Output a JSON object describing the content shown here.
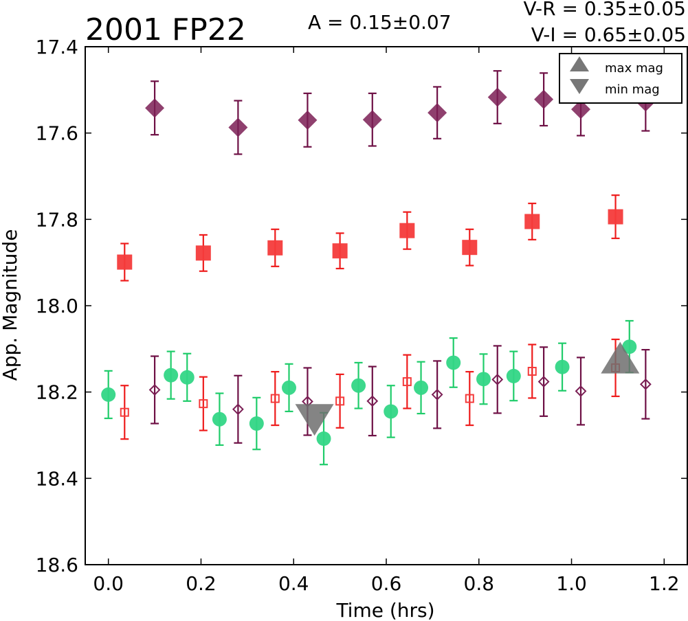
{
  "chart_data": {
    "type": "scatter",
    "title": "2001 FP22",
    "annotations": {
      "amplitude": "A  = 0.15±0.07",
      "v_r": "V-R = 0.35±0.05",
      "v_i": "V-I  = 0.65±0.05"
    },
    "xlabel": "Time (hrs)",
    "ylabel": "App. Magnitude",
    "xlim": [
      -0.05,
      1.25
    ],
    "ylim": [
      18.6,
      17.4
    ],
    "y_inverted": true,
    "grid": false,
    "x_ticks": [
      "0.0",
      "0.2",
      "0.4",
      "0.6",
      "0.8",
      "1.0",
      "1.2"
    ],
    "y_ticks": [
      "17.4",
      "17.6",
      "17.8",
      "18.0",
      "18.2",
      "18.4",
      "18.6"
    ],
    "legend": {
      "placement": "top-right",
      "entries": [
        {
          "label": "max mag",
          "marker": "triangle-up",
          "color": "#777777"
        },
        {
          "label": "min mag",
          "marker": "triangle-down",
          "color": "#777777"
        }
      ]
    },
    "series": [
      {
        "marker": "diamond-filled",
        "color": "#7b1f55",
        "err_color": "#6e1045",
        "x": [
          0.1,
          0.28,
          0.43,
          0.57,
          0.71,
          0.84,
          0.94,
          1.02,
          1.16
        ],
        "y": [
          17.542,
          17.587,
          17.57,
          17.569,
          17.553,
          17.517,
          17.522,
          17.545,
          17.528
        ],
        "err": [
          0.062,
          0.062,
          0.062,
          0.061,
          0.06,
          0.061,
          0.061,
          0.061,
          0.067
        ]
      },
      {
        "marker": "square-filled",
        "color": "#f43b3b",
        "err_color": "#ee1c1c",
        "x": [
          0.035,
          0.205,
          0.36,
          0.5,
          0.645,
          0.78,
          0.915,
          1.095
        ],
        "y": [
          17.899,
          17.878,
          17.866,
          17.873,
          17.826,
          17.865,
          17.805,
          17.794
        ],
        "err": [
          0.043,
          0.042,
          0.043,
          0.041,
          0.043,
          0.042,
          0.042,
          0.05
        ]
      },
      {
        "marker": "circle-filled",
        "color": "#33d686",
        "err_color": "#1fcc6a",
        "x": [
          0.0,
          0.135,
          0.17,
          0.24,
          0.32,
          0.39,
          0.465,
          0.54,
          0.61,
          0.675,
          0.745,
          0.81,
          0.875,
          0.98,
          1.125
        ],
        "y": [
          18.206,
          18.161,
          18.166,
          18.263,
          18.273,
          18.19,
          18.308,
          18.185,
          18.245,
          18.19,
          18.132,
          18.17,
          18.163,
          18.142,
          18.095
        ],
        "err": [
          0.055,
          0.055,
          0.055,
          0.06,
          0.06,
          0.055,
          0.06,
          0.053,
          0.06,
          0.06,
          0.057,
          0.058,
          0.057,
          0.055,
          0.06
        ]
      },
      {
        "marker": "square-open",
        "color": "#f43b3b",
        "err_color": "#ee1c1c",
        "x": [
          0.035,
          0.205,
          0.36,
          0.5,
          0.645,
          0.78,
          0.915,
          1.095
        ],
        "y": [
          18.247,
          18.227,
          18.215,
          18.221,
          18.176,
          18.215,
          18.152,
          18.144
        ],
        "err": [
          0.062,
          0.062,
          0.062,
          0.062,
          0.062,
          0.062,
          0.062,
          0.066
        ]
      },
      {
        "marker": "diamond-open",
        "color": "#7b1f55",
        "err_color": "#6e1045",
        "x": [
          0.1,
          0.28,
          0.43,
          0.57,
          0.71,
          0.84,
          0.94,
          1.02,
          1.16
        ],
        "y": [
          18.195,
          18.24,
          18.222,
          18.221,
          18.206,
          18.171,
          18.176,
          18.198,
          18.182
        ],
        "err": [
          0.078,
          0.078,
          0.078,
          0.08,
          0.078,
          0.078,
          0.08,
          0.078,
          0.08
        ]
      }
    ],
    "extremes": [
      {
        "kind": "min",
        "x": 0.445,
        "y": 18.255
      },
      {
        "kind": "max",
        "x": 1.105,
        "y": 18.13
      }
    ]
  }
}
